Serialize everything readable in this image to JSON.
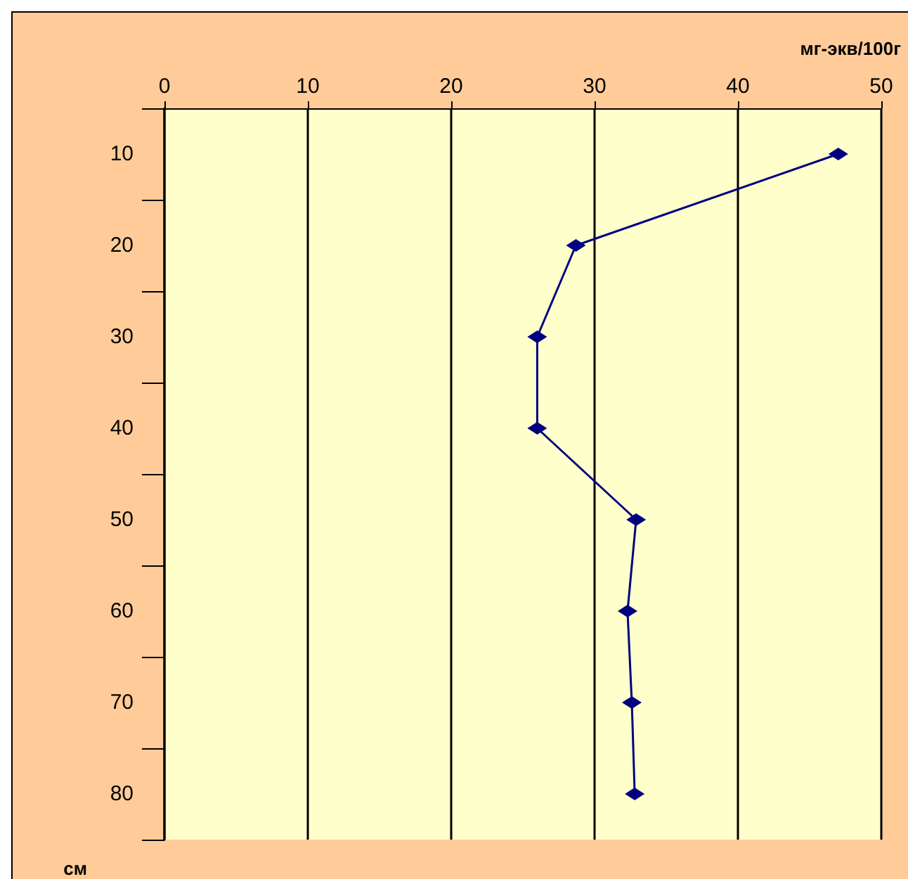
{
  "chart_data": {
    "type": "line",
    "orientation": "horizontal",
    "xlabel": "мг-экв/100г",
    "ylabel": "см",
    "categories": [
      "10",
      "20",
      "30",
      "40",
      "50",
      "60",
      "70",
      "80"
    ],
    "series": [
      {
        "color": "#000080",
        "values": [
          47.0,
          28.7,
          26.0,
          26.0,
          32.9,
          32.3,
          32.6,
          32.8
        ]
      }
    ],
    "xlim": [
      0,
      50
    ],
    "xticks": [
      0,
      10,
      20,
      30,
      40,
      50
    ],
    "grid": "x",
    "marker": "diamond",
    "line_style": "solid"
  }
}
